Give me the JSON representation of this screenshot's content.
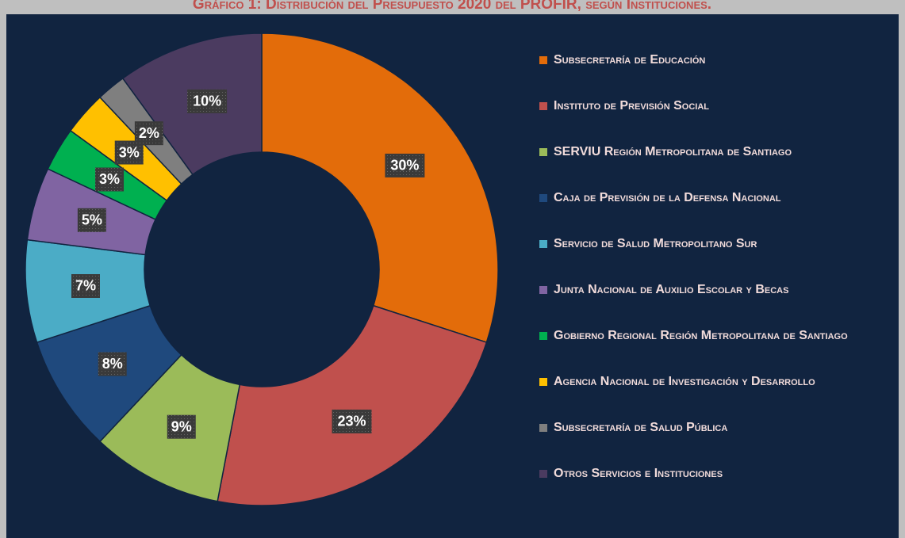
{
  "chart_data": {
    "type": "donut",
    "title": "Gráfico 1: Distribución del Presupuesto 2020 del PROFIR, según Instituciones.",
    "categories": [
      "Subsecretaría de Educación",
      "Instituto de Previsión Social",
      "SERVIU Región Metropolitana de Santiago",
      "Caja de Previsión de la Defensa Nacional",
      "Servicio de Salud Metropolitano Sur",
      "Junta Nacional de Auxilio Escolar y Becas",
      "Gobierno Regional Región Metropolitana de Santiago",
      "Agencia Nacional de Investigación y Desarrollo",
      "Subsecretaría de Salud Pública",
      "Otros Servicios e Instituciones"
    ],
    "values": [
      30,
      23,
      9,
      8,
      7,
      5,
      3,
      3,
      2,
      10
    ],
    "value_labels": [
      "30%",
      "23%",
      "9%",
      "8%",
      "7%",
      "5%",
      "3%",
      "3%",
      "2%",
      "10%"
    ],
    "colors": [
      "#E36C0A",
      "#C0504D",
      "#9BBB59",
      "#1F497D",
      "#4BACC6",
      "#8064A2",
      "#00B050",
      "#FFC000",
      "#7F7F7F",
      "#4B3B60"
    ],
    "legend": "right"
  }
}
